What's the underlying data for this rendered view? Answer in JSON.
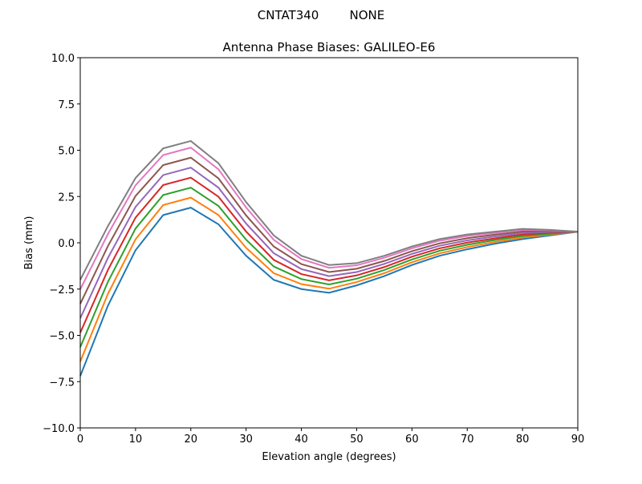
{
  "chart_data": {
    "type": "line",
    "suptitle": "CNTAT340        NONE",
    "title": "Antenna Phase Biases: GALILEO-E6",
    "xlabel": "Elevation angle (degrees)",
    "ylabel": "Bias (mm)",
    "xlim": [
      0,
      90
    ],
    "ylim": [
      -10,
      10
    ],
    "xticks": [
      0,
      10,
      20,
      30,
      40,
      50,
      60,
      70,
      80,
      90
    ],
    "yticks": [
      -10.0,
      -7.5,
      -5.0,
      -2.5,
      0.0,
      2.5,
      5.0,
      7.5,
      10.0
    ],
    "ytick_labels": [
      "−10.0",
      "−7.5",
      "−5.0",
      "−2.5",
      "0.0",
      "2.5",
      "5.0",
      "7.5",
      "10.0"
    ],
    "grid": false,
    "x": [
      0,
      5,
      10,
      15,
      20,
      25,
      30,
      35,
      40,
      45,
      50,
      55,
      60,
      65,
      70,
      75,
      80,
      85,
      90
    ],
    "colors": [
      "#1f77b4",
      "#ff7f0e",
      "#2ca02c",
      "#d62728",
      "#9467bd",
      "#8c564b",
      "#e377c2",
      "#7f7f7f",
      "#bcbd22",
      "#17becf"
    ],
    "series": [
      {
        "values": [
          -7.2,
          -3.4,
          -0.4,
          1.5,
          1.9,
          1.0,
          -0.7,
          -2.0,
          -2.5,
          -2.7,
          -2.3,
          -1.8,
          -1.2,
          -0.7,
          -0.35,
          -0.05,
          0.2,
          0.4,
          0.6
        ]
      },
      {
        "values": [
          -6.42,
          -2.76,
          0.19,
          2.04,
          2.44,
          1.5,
          -0.27,
          -1.64,
          -2.23,
          -2.48,
          -2.12,
          -1.64,
          -1.05,
          -0.57,
          -0.23,
          0.05,
          0.28,
          0.45,
          0.6
        ]
      },
      {
        "values": [
          -5.64,
          -2.11,
          0.77,
          2.58,
          2.98,
          1.99,
          0.17,
          -1.28,
          -1.96,
          -2.25,
          -1.94,
          -1.47,
          -0.9,
          -0.43,
          -0.11,
          0.15,
          0.37,
          0.49,
          0.6
        ]
      },
      {
        "values": [
          -4.86,
          -1.47,
          1.36,
          3.12,
          3.52,
          2.49,
          0.61,
          -0.92,
          -1.69,
          -2.03,
          -1.76,
          -1.31,
          -0.75,
          -0.3,
          0.01,
          0.24,
          0.45,
          0.54,
          0.6
        ]
      },
      {
        "values": [
          -4.08,
          -0.82,
          1.94,
          3.66,
          4.06,
          2.98,
          1.04,
          -0.56,
          -1.42,
          -1.8,
          -1.58,
          -1.14,
          -0.6,
          -0.16,
          0.13,
          0.34,
          0.53,
          0.58,
          0.6
        ]
      },
      {
        "values": [
          -3.3,
          -0.18,
          2.53,
          4.2,
          4.6,
          3.48,
          1.48,
          -0.2,
          -1.15,
          -1.58,
          -1.4,
          -0.98,
          -0.45,
          -0.03,
          0.25,
          0.44,
          0.61,
          0.63,
          0.6
        ]
      },
      {
        "values": [
          -2.52,
          0.47,
          3.11,
          4.74,
          5.14,
          3.97,
          1.91,
          0.16,
          -0.88,
          -1.35,
          -1.22,
          -0.81,
          -0.3,
          0.11,
          0.37,
          0.53,
          0.7,
          0.67,
          0.6
        ]
      },
      {
        "values": [
          -2.0,
          0.9,
          3.5,
          5.1,
          5.5,
          4.3,
          2.2,
          0.4,
          -0.7,
          -1.2,
          -1.1,
          -0.7,
          -0.2,
          0.2,
          0.45,
          0.6,
          0.75,
          0.7,
          0.6
        ]
      }
    ]
  }
}
